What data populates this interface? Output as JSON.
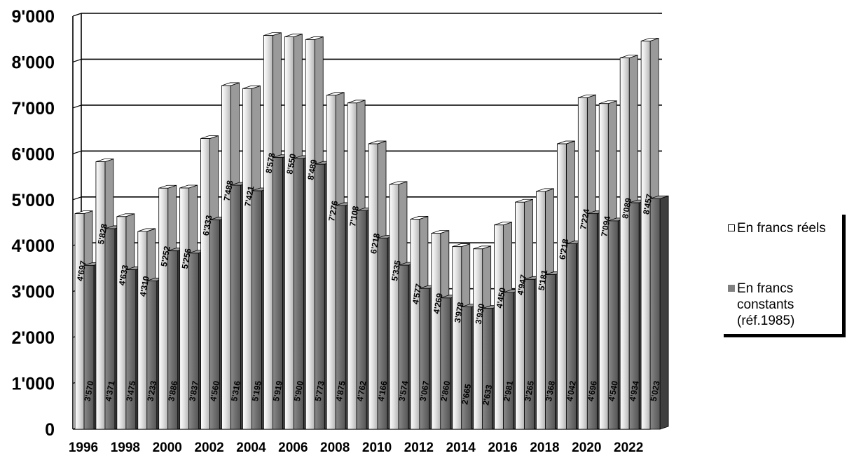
{
  "chart_data": {
    "type": "bar",
    "title": "",
    "xlabel": "",
    "ylabel": "",
    "ylim": [
      0,
      9000
    ],
    "yticks": [
      "0",
      "1'000",
      "2'000",
      "3'000",
      "4'000",
      "5'000",
      "6'000",
      "7'000",
      "8'000",
      "9'000"
    ],
    "ytick_values": [
      0,
      1000,
      2000,
      3000,
      4000,
      5000,
      6000,
      7000,
      8000,
      9000
    ],
    "grid": true,
    "legend_position": "right",
    "categories": [
      1996,
      1997,
      1998,
      1999,
      2000,
      2001,
      2002,
      2003,
      2004,
      2005,
      2006,
      2007,
      2008,
      2009,
      2010,
      2011,
      2012,
      2013,
      2014,
      2015,
      2016,
      2017,
      2018,
      2019,
      2020,
      2021,
      2022,
      2023
    ],
    "x_tick_labels": [
      "1996",
      "",
      "1998",
      "",
      "2000",
      "",
      "2002",
      "",
      "2004",
      "",
      "2006",
      "",
      "2008",
      "",
      "2010",
      "",
      "2012",
      "",
      "2014",
      "",
      "2016",
      "",
      "2018",
      "",
      "2020",
      "",
      "2022",
      ""
    ],
    "series": [
      {
        "name": "En francs réels",
        "color": "#b0b0b0",
        "values": [
          4697,
          5828,
          4633,
          4310,
          5252,
          5256,
          6333,
          7488,
          7421,
          8578,
          8550,
          8489,
          7276,
          7108,
          6218,
          5335,
          4577,
          4269,
          3978,
          3930,
          4450,
          4947,
          5181,
          6218,
          7224,
          7094,
          8089,
          8457
        ],
        "labels": [
          "4'697",
          "5'828",
          "4'633",
          "4'310",
          "5'252",
          "5'256",
          "6'333",
          "7'488",
          "7'421",
          "8'578",
          "8'550",
          "8'489",
          "7'276",
          "7'108",
          "6'218",
          "5'335",
          "4'577",
          "4'269",
          "3'978",
          "3'930",
          "4'450",
          "4'947",
          "5'181",
          "6'218",
          "7'224",
          "7'094",
          "8'089",
          "8'457"
        ]
      },
      {
        "name": "En francs constants (réf.1985)",
        "color": "#6b6b6b",
        "values": [
          3570,
          4371,
          3475,
          3233,
          3886,
          3837,
          4560,
          5316,
          5195,
          5919,
          5900,
          5773,
          4875,
          4762,
          4166,
          3574,
          3067,
          2860,
          2665,
          2633,
          2981,
          3265,
          3368,
          4042,
          4696,
          4540,
          4934,
          5023
        ],
        "labels": [
          "3'570",
          "4'371",
          "3'475",
          "3'233",
          "3'886",
          "3'837",
          "4'560",
          "5'316",
          "5'195",
          "5'919",
          "5'900",
          "5'773",
          "4'875",
          "4'762",
          "4'166",
          "3'574",
          "3'067",
          "2'860",
          "2'665",
          "2'633",
          "2'981",
          "3'265",
          "3'368",
          "4'042",
          "4'696",
          "4'540",
          "4'934",
          "5'023"
        ]
      }
    ]
  },
  "legend": {
    "item1": "En francs réels",
    "item2": "En francs constants (réf.1985)"
  }
}
